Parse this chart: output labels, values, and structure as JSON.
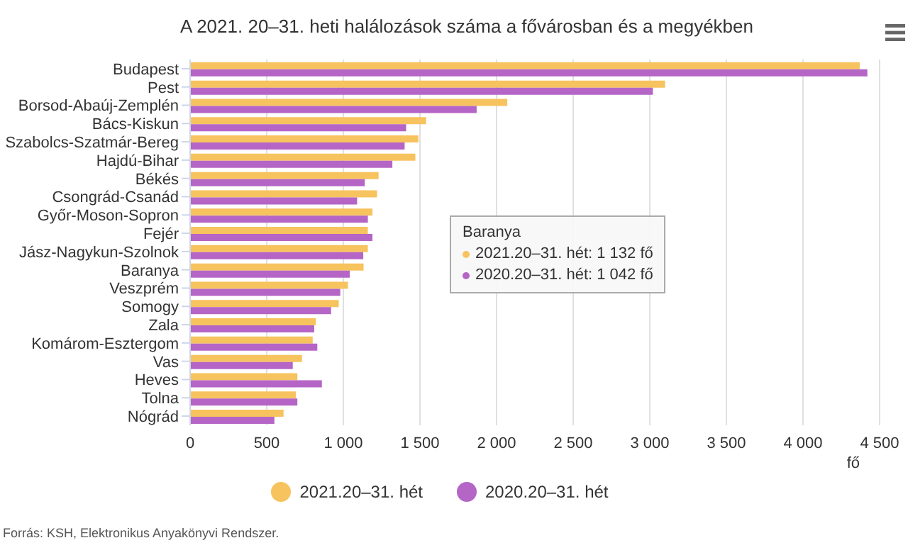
{
  "chart_data": {
    "type": "bar",
    "orientation": "horizontal",
    "title": "A 2021. 20–31. heti halálozások száma a fővárosban és a megyékben",
    "categories": [
      "Budapest",
      "Pest",
      "Borsod-Abaúj-Zemplén",
      "Bács-Kiskun",
      "Szabolcs-Szatmár-Bereg",
      "Hajdú-Bihar",
      "Békés",
      "Csongrád-Csanád",
      "Győr-Moson-Sopron",
      "Fejér",
      "Jász-Nagykun-Szolnok",
      "Baranya",
      "Veszprém",
      "Somogy",
      "Zala",
      "Komárom-Esztergom",
      "Vas",
      "Heves",
      "Tolna",
      "Nógrád"
    ],
    "series": [
      {
        "name": "2021.20–31. hét",
        "color": "#f7c35e",
        "values": [
          4370,
          3100,
          2070,
          1540,
          1490,
          1470,
          1230,
          1220,
          1190,
          1160,
          1160,
          1132,
          1030,
          970,
          820,
          800,
          730,
          700,
          690,
          610
        ]
      },
      {
        "name": "2020.20–31. hét",
        "color": "#b565c6",
        "values": [
          4420,
          3020,
          1870,
          1410,
          1400,
          1320,
          1140,
          1090,
          1160,
          1190,
          1130,
          1042,
          980,
          920,
          810,
          830,
          670,
          860,
          700,
          550
        ]
      }
    ],
    "xlim": [
      0,
      4500
    ],
    "xticks": [
      0,
      {
        "value": 500,
        "label": "500"
      },
      {
        "value": 1000,
        "label": "1 000"
      },
      {
        "value": 1500,
        "label": "1 500"
      },
      {
        "value": 2000,
        "label": "2 000"
      },
      {
        "value": 2500,
        "label": "2 500"
      },
      {
        "value": 3000,
        "label": "3 000"
      },
      {
        "value": 3500,
        "label": "3 500"
      },
      {
        "value": 4000,
        "label": "4 000"
      },
      {
        "value": 4500,
        "label": "4 500"
      }
    ],
    "xlabel": "fő",
    "grid": "x",
    "legend": "bottom",
    "annotations": [
      "Baranya",
      "2021.20–31. hét: 1 132 fő",
      "2020.20–31. hét: 1 042 fő",
      "Forrás: KSH, Elektronikus Anyakönyvi Rendszer."
    ]
  }
}
